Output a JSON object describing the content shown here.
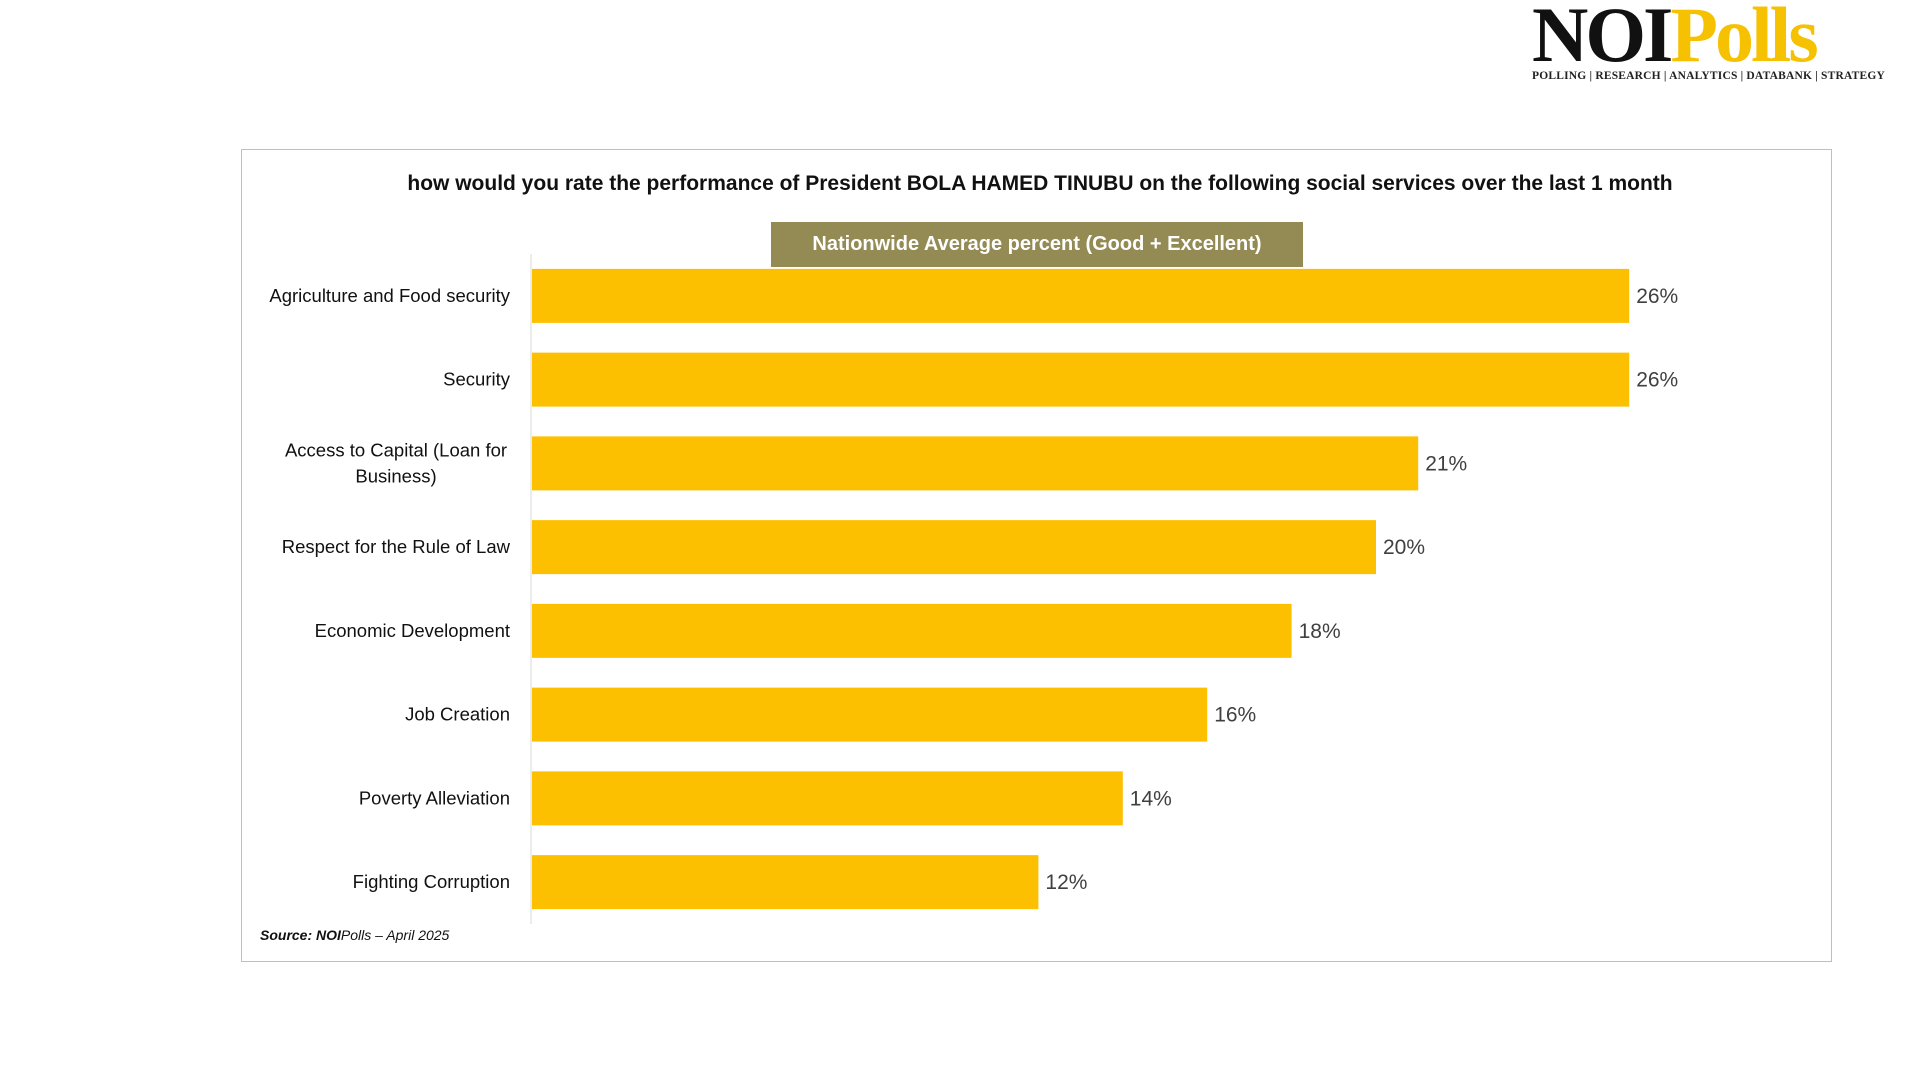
{
  "logo": {
    "noi": "NOI",
    "polls": "Polls",
    "tagline": "POLLING | RESEARCH | ANALYTICS | DATABANK | STRATEGY"
  },
  "source": {
    "prefix": "Source: NOI",
    "rest": "Polls –  April  2025"
  },
  "colors": {
    "bar": "#fdc000",
    "series_label_bg": "#948a54",
    "value_label": "#404040"
  },
  "chart_data": {
    "type": "bar",
    "orientation": "horizontal",
    "title": "how would you rate the performance of President BOLA HAMED TINUBU on the following social services over the last 1 month",
    "series": [
      {
        "name": "Nationwide Average percent (Good + Excellent)",
        "values": [
          26,
          26,
          21,
          20,
          18,
          16,
          14,
          12
        ]
      }
    ],
    "categories": [
      "Agriculture and Food security",
      "Security",
      "Access to Capital (Loan for Business)",
      "Respect for the Rule of Law",
      "Economic Development",
      "Job Creation",
      "Poverty Alleviation",
      "Fighting Corruption"
    ],
    "value_labels": [
      "26%",
      "26%",
      "21%",
      "20%",
      "18%",
      "16%",
      "14%",
      "12%"
    ],
    "xlim": [
      0,
      30
    ],
    "grid": false,
    "legend": "top"
  }
}
